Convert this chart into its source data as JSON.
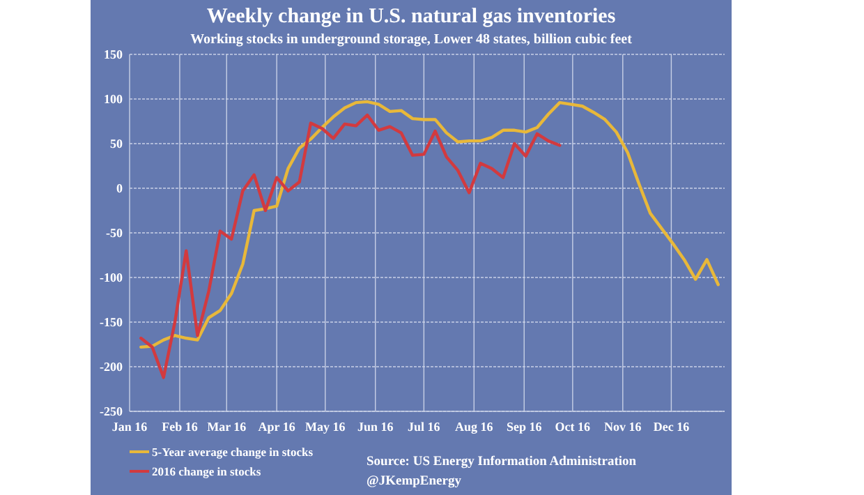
{
  "chart_data": {
    "type": "line",
    "title": "Weekly change in U.S. natural gas inventories",
    "subtitle": "Working stocks in underground storage, Lower 48 states, billion cubic feet",
    "x": [
      "2016-01-08",
      "2016-01-15",
      "2016-01-22",
      "2016-01-29",
      "2016-02-05",
      "2016-02-12",
      "2016-02-19",
      "2016-02-26",
      "2016-03-04",
      "2016-03-11",
      "2016-03-18",
      "2016-03-25",
      "2016-04-01",
      "2016-04-08",
      "2016-04-15",
      "2016-04-22",
      "2016-04-29",
      "2016-05-06",
      "2016-05-13",
      "2016-05-20",
      "2016-05-27",
      "2016-06-03",
      "2016-06-10",
      "2016-06-17",
      "2016-06-24",
      "2016-07-01",
      "2016-07-08",
      "2016-07-15",
      "2016-07-22",
      "2016-07-29",
      "2016-08-05",
      "2016-08-12",
      "2016-08-19",
      "2016-08-26",
      "2016-09-02",
      "2016-09-09",
      "2016-09-16",
      "2016-09-23",
      "2016-09-30",
      "2016-10-07",
      "2016-10-14",
      "2016-10-21",
      "2016-10-28",
      "2016-11-04",
      "2016-11-11",
      "2016-11-18",
      "2016-11-25",
      "2016-12-02",
      "2016-12-09",
      "2016-12-16",
      "2016-12-23",
      "2016-12-30"
    ],
    "series": [
      {
        "name": "5-Year average change in stocks",
        "color": "#e8b83a",
        "values": [
          -178,
          -177,
          -170,
          -165,
          -168,
          -170,
          -145,
          -137,
          -118,
          -85,
          -25,
          -23,
          -20,
          22,
          45,
          55,
          68,
          80,
          90,
          96,
          97,
          94,
          86,
          87,
          78,
          77,
          77,
          62,
          52,
          53,
          53,
          57,
          65,
          65,
          63,
          68,
          83,
          96,
          94,
          92,
          85,
          77,
          63,
          40,
          5,
          -28,
          -45,
          -62,
          -80,
          -102,
          -80,
          -108
        ]
      },
      {
        "name": "2016 change in stocks",
        "color": "#d23a3f",
        "x": [
          "2016-01-08",
          "2016-01-15",
          "2016-01-22",
          "2016-01-29",
          "2016-02-05",
          "2016-02-12",
          "2016-02-19",
          "2016-02-26",
          "2016-03-04",
          "2016-03-11",
          "2016-03-18",
          "2016-03-25",
          "2016-04-01",
          "2016-04-08",
          "2016-04-15",
          "2016-04-22",
          "2016-04-29",
          "2016-05-06",
          "2016-05-13",
          "2016-05-20",
          "2016-05-27",
          "2016-06-03",
          "2016-06-10",
          "2016-06-17",
          "2016-06-24",
          "2016-07-01",
          "2016-07-08",
          "2016-07-15",
          "2016-07-22",
          "2016-07-29",
          "2016-08-05",
          "2016-08-12",
          "2016-08-19",
          "2016-08-26",
          "2016-09-02",
          "2016-09-09",
          "2016-09-16",
          "2016-09-23"
        ],
        "values": [
          -168,
          -178,
          -212,
          -150,
          -70,
          -165,
          -115,
          -48,
          -57,
          -3,
          15,
          -25,
          12,
          -3,
          7,
          73,
          67,
          56,
          72,
          70,
          82,
          65,
          69,
          62,
          37,
          38,
          64,
          35,
          20,
          -5,
          28,
          22,
          12,
          50,
          36,
          61,
          53,
          48
        ]
      }
    ],
    "xlim": [
      "2016-01-01",
      "2017-01-03"
    ],
    "xticks": [
      {
        "value": "2016-01-01",
        "label": "Jan 16"
      },
      {
        "value": "2016-02-01",
        "label": "Feb 16"
      },
      {
        "value": "2016-03-01",
        "label": "Mar 16"
      },
      {
        "value": "2016-04-01",
        "label": "Apr 16"
      },
      {
        "value": "2016-05-01",
        "label": "May 16"
      },
      {
        "value": "2016-06-01",
        "label": "Jun 16"
      },
      {
        "value": "2016-07-01",
        "label": "Jul 16"
      },
      {
        "value": "2016-08-01",
        "label": "Aug 16"
      },
      {
        "value": "2016-09-01",
        "label": "Sep 16"
      },
      {
        "value": "2016-10-01",
        "label": "Oct 16"
      },
      {
        "value": "2016-11-01",
        "label": "Nov 16"
      },
      {
        "value": "2016-12-01",
        "label": "Dec 16"
      }
    ],
    "ylim": [
      -250,
      150
    ],
    "yticks": [
      -250,
      -200,
      -150,
      -100,
      -50,
      0,
      50,
      100,
      150
    ],
    "grid": true,
    "legend": "bottom left",
    "line_style": "solid",
    "marker": "none",
    "annotations": [
      "Source: US Energy Information Administration",
      "@JKempEnergy"
    ]
  }
}
